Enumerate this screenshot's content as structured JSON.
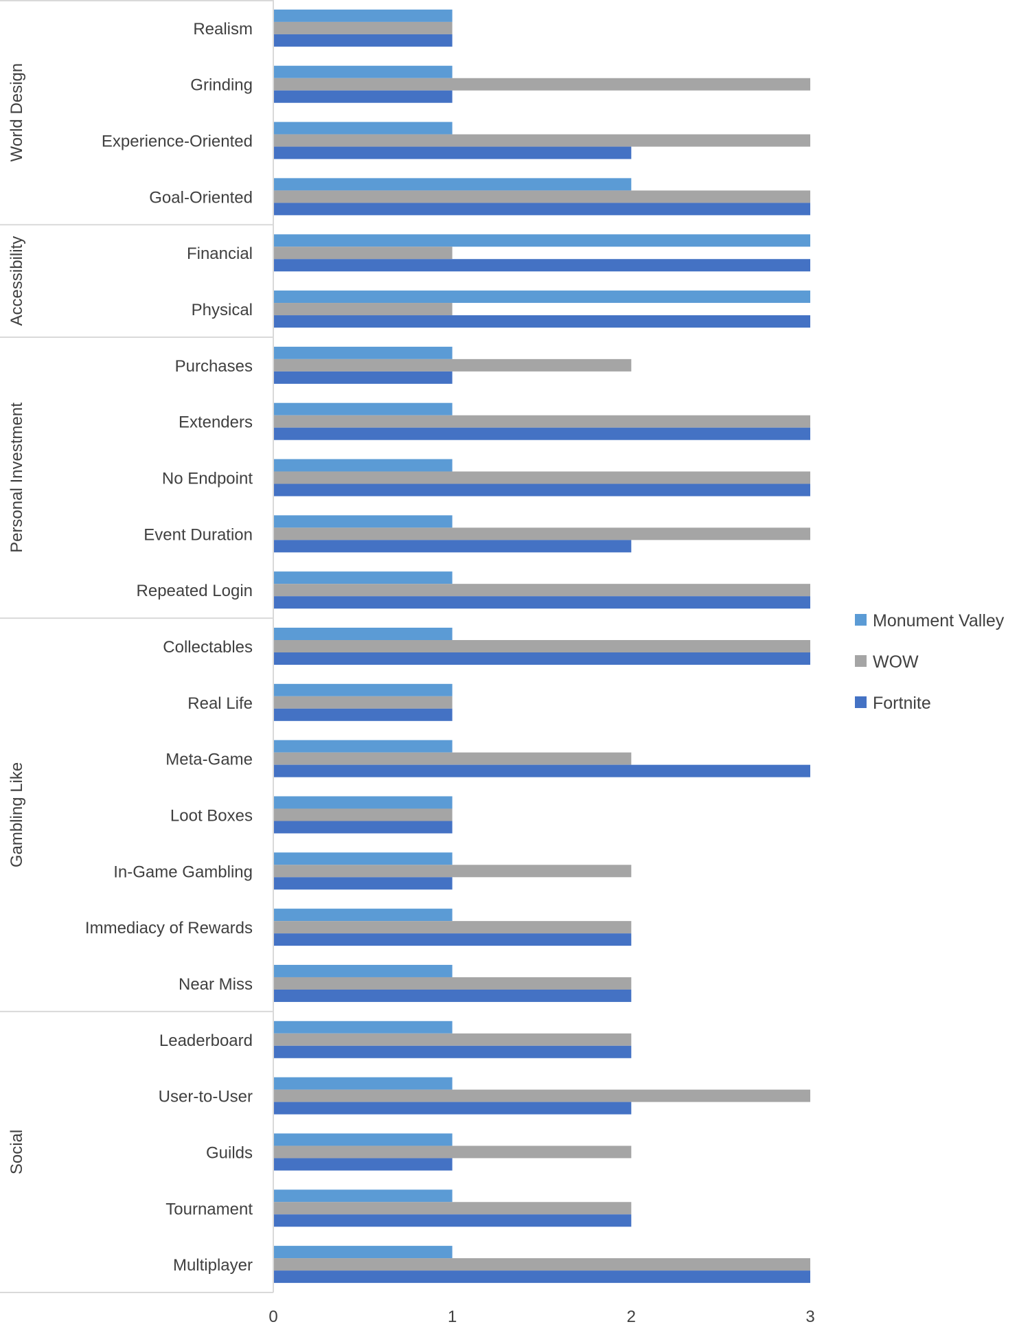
{
  "chart_data": {
    "type": "bar",
    "orientation": "horizontal",
    "title": "",
    "xlabel": "",
    "ylabel": "",
    "xlim": [
      0,
      3
    ],
    "x_ticks": [
      "0",
      "1",
      "2",
      "3"
    ],
    "grid": false,
    "legend_position": "right",
    "groups": [
      {
        "name": "World Design",
        "categories": [
          "Realism",
          "Grinding",
          "Experience-Oriented",
          "Goal-Oriented"
        ]
      },
      {
        "name": "Accessibility",
        "categories": [
          "Financial",
          "Physical"
        ]
      },
      {
        "name": "Personal Investment",
        "categories": [
          "Purchases",
          "Extenders",
          "No Endpoint",
          "Event Duration",
          "Repeated Login"
        ]
      },
      {
        "name": "Gambling Like",
        "categories": [
          "Collectables",
          "Real Life",
          "Meta-Game",
          "Loot Boxes",
          "In-Game Gambling",
          "Immediacy of Rewards",
          "Near Miss"
        ]
      },
      {
        "name": "Social",
        "categories": [
          "Leaderboard",
          "User-to-User",
          "Guilds",
          "Tournament",
          "Multiplayer"
        ]
      }
    ],
    "categories": [
      "Realism",
      "Grinding",
      "Experience-Oriented",
      "Goal-Oriented",
      "Financial",
      "Physical",
      "Purchases",
      "Extenders",
      "No Endpoint",
      "Event Duration",
      "Repeated Login",
      "Collectables",
      "Real Life",
      "Meta-Game",
      "Loot Boxes",
      "In-Game Gambling",
      "Immediacy of Rewards",
      "Near Miss",
      "Leaderboard",
      "User-to-User",
      "Guilds",
      "Tournament",
      "Multiplayer"
    ],
    "series": [
      {
        "name": "Monument Valley",
        "color": "#5b9bd5",
        "values": [
          1,
          1,
          1,
          2,
          3,
          3,
          1,
          1,
          1,
          1,
          1,
          1,
          1,
          1,
          1,
          1,
          1,
          1,
          1,
          1,
          1,
          1,
          1
        ]
      },
      {
        "name": "WOW",
        "color": "#a5a5a5",
        "values": [
          1,
          3,
          3,
          3,
          1,
          1,
          2,
          3,
          3,
          3,
          3,
          3,
          1,
          2,
          1,
          2,
          2,
          2,
          2,
          3,
          2,
          2,
          3
        ]
      },
      {
        "name": "Fortnite",
        "color": "#4472c4",
        "values": [
          1,
          1,
          2,
          3,
          3,
          3,
          1,
          3,
          3,
          2,
          3,
          3,
          1,
          3,
          1,
          1,
          2,
          2,
          2,
          2,
          1,
          2,
          3
        ]
      }
    ]
  }
}
